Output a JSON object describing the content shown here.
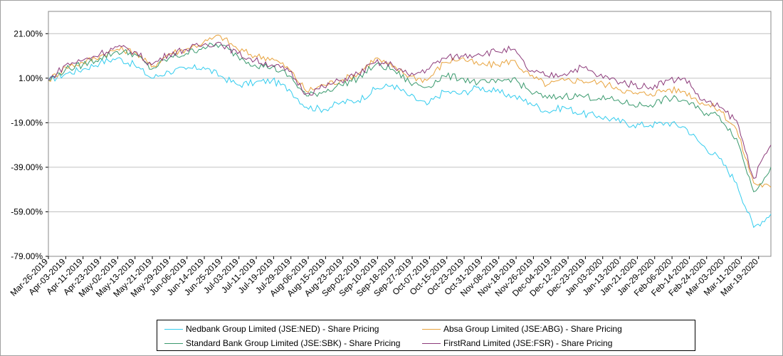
{
  "chart_data": {
    "type": "line",
    "title": "",
    "xlabel": "",
    "ylabel": "",
    "yunit": "%",
    "ylim": [
      -79,
      31
    ],
    "yticks": [
      "21.00%",
      "1.00%",
      "-19.00%",
      "-39.00%",
      "-59.00%",
      "-79.00%"
    ],
    "ytick_values": [
      21,
      1,
      -19,
      -39,
      -59,
      -79
    ],
    "grid": true,
    "legend_position": "bottom",
    "x_tick_labels": [
      "Mar-26-2019",
      "Apr-03-2019",
      "Apr-11-2019",
      "Apr-23-2019",
      "May-02-2019",
      "May-13-2019",
      "May-21-2019",
      "May-29-2019",
      "Jun-06-2019",
      "Jun-14-2019",
      "Jun-25-2019",
      "Jul-03-2019",
      "Jul-11-2019",
      "Jul-19-2019",
      "Jul-29-2019",
      "Aug-06-2019",
      "Aug-15-2019",
      "Aug-23-2019",
      "Sep-02-2019",
      "Sep-10-2019",
      "Sep-18-2019",
      "Sep-27-2019",
      "Oct-07-2019",
      "Oct-15-2019",
      "Oct-23-2019",
      "Oct-31-2019",
      "Nov-08-2019",
      "Nov-18-2019",
      "Nov-26-2019",
      "Dec-04-2019",
      "Dec-12-2019",
      "Dec-23-2019",
      "Jan-03-2020",
      "Jan-13-2020",
      "Jan-21-2020",
      "Jan-29-2020",
      "Feb-06-2020",
      "Feb-14-2020",
      "Feb-24-2020",
      "Mar-03-2020",
      "Mar-11-2020",
      "Mar-19-2020"
    ],
    "x": [
      "Mar-26-2019",
      "Apr-03-2019",
      "Apr-11-2019",
      "Apr-23-2019",
      "May-02-2019",
      "May-13-2019",
      "May-21-2019",
      "May-29-2019",
      "Jun-06-2019",
      "Jun-14-2019",
      "Jun-25-2019",
      "Jul-03-2019",
      "Jul-11-2019",
      "Jul-19-2019",
      "Jul-29-2019",
      "Aug-06-2019",
      "Aug-15-2019",
      "Aug-23-2019",
      "Sep-02-2019",
      "Sep-10-2019",
      "Sep-18-2019",
      "Sep-27-2019",
      "Oct-07-2019",
      "Oct-15-2019",
      "Oct-23-2019",
      "Oct-31-2019",
      "Nov-08-2019",
      "Nov-18-2019",
      "Nov-26-2019",
      "Dec-04-2019",
      "Dec-12-2019",
      "Dec-23-2019",
      "Jan-03-2020",
      "Jan-13-2020",
      "Jan-21-2020",
      "Jan-29-2020",
      "Feb-06-2020",
      "Feb-14-2020",
      "Feb-24-2020",
      "Mar-03-2020",
      "Mar-11-2020",
      "Mar-19-2020",
      "Mar-25-2020"
    ],
    "series": [
      {
        "name": "Nedbank Group Limited (JSE:NED) - Share Pricing",
        "color": "#33ccee",
        "values": [
          0,
          3,
          5,
          8,
          10,
          7,
          1,
          4,
          5,
          6,
          2,
          -2,
          -1,
          0,
          -4,
          -12,
          -13,
          -10,
          -9,
          -4,
          -2,
          -7,
          -11,
          -5,
          -6,
          -3,
          -5,
          -7,
          -10,
          -14,
          -12,
          -15,
          -16,
          -18,
          -20,
          -20,
          -19,
          -21,
          -29,
          -35,
          -46,
          -66,
          -60
        ]
      },
      {
        "name": "Absa Group Limited (JSE:ABG) - Share Pricing",
        "color": "#e8a33d",
        "values": [
          0,
          6,
          8,
          11,
          14,
          13,
          6,
          12,
          14,
          17,
          20,
          14,
          11,
          10,
          5,
          -5,
          -2,
          0,
          3,
          10,
          6,
          2,
          0,
          8,
          10,
          7,
          7,
          9,
          2,
          -2,
          0,
          0,
          -1,
          -3,
          -6,
          -6,
          -4,
          -5,
          -10,
          -13,
          -22,
          -46,
          -48
        ]
      },
      {
        "name": "Standard Bank Group Limited (JSE:SBK) - Share Pricing",
        "color": "#3a9a6e",
        "values": [
          0,
          5,
          7,
          10,
          13,
          12,
          5,
          10,
          12,
          15,
          16,
          11,
          7,
          6,
          2,
          -7,
          -5,
          -2,
          1,
          7,
          5,
          -1,
          -3,
          2,
          1,
          -1,
          -1,
          1,
          -5,
          -8,
          -7,
          -7,
          -8,
          -9,
          -11,
          -11,
          -8,
          -9,
          -14,
          -16,
          -26,
          -50,
          -39
        ]
      },
      {
        "name": "FirstRand Limited (JSE:FSR) - Share Pricing",
        "color": "#8c3a7a",
        "values": [
          0,
          7,
          9,
          12,
          15,
          13,
          7,
          12,
          14,
          16,
          17,
          12,
          9,
          7,
          4,
          -6,
          -3,
          0,
          3,
          8,
          7,
          2,
          5,
          10,
          11,
          12,
          13,
          14,
          4,
          2,
          3,
          6,
          2,
          0,
          -2,
          -3,
          0,
          1,
          -9,
          -12,
          -18,
          -44,
          -29
        ]
      }
    ]
  }
}
